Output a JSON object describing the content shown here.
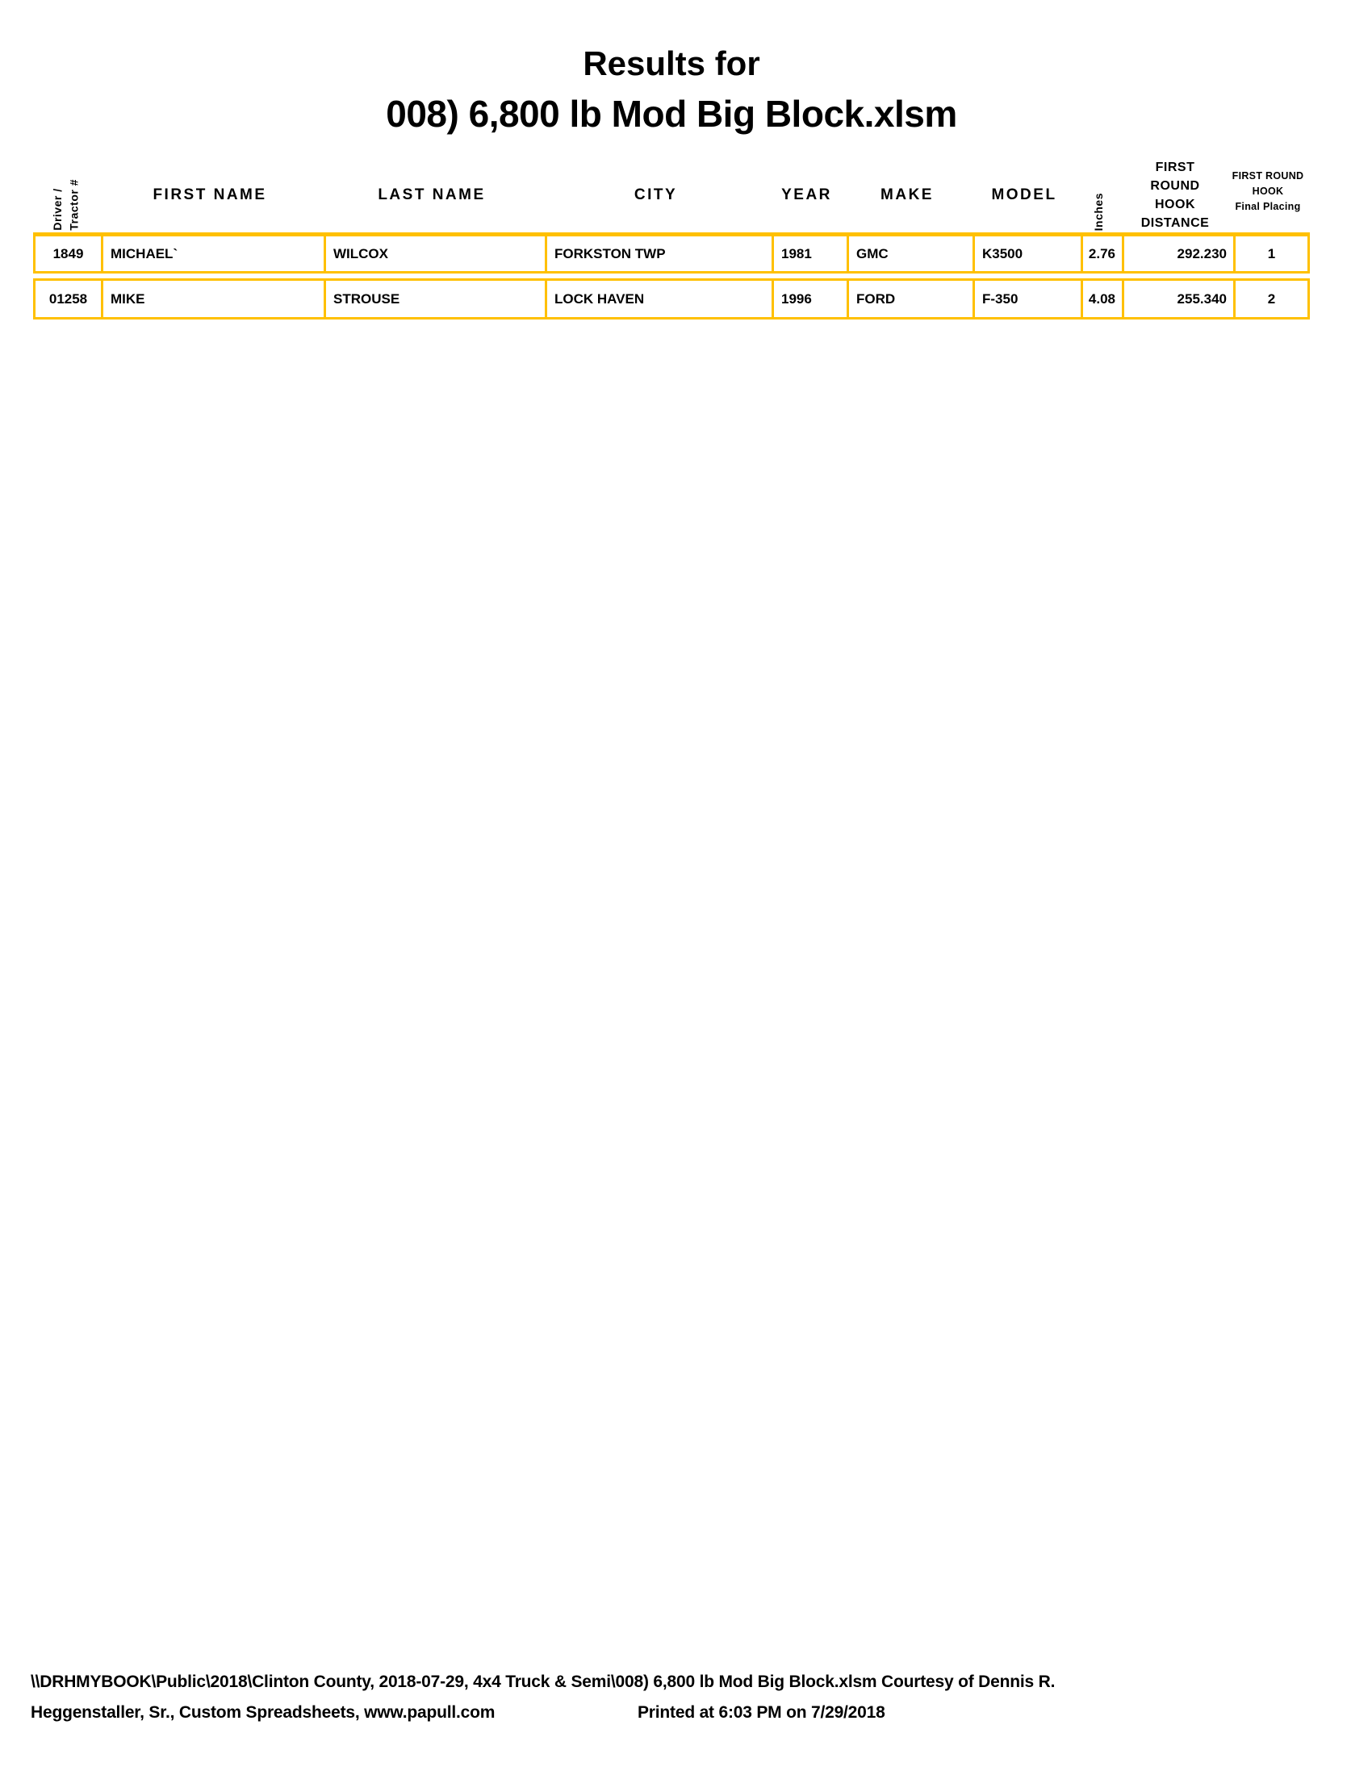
{
  "meta": {
    "title_line1": "Results for",
    "title_line2": "008) 6,800 lb Mod Big Block.xlsm"
  },
  "colors": {
    "table_border": "#FFC000",
    "text": "#000000",
    "background": "#FFFFFF"
  },
  "table": {
    "headers": {
      "driver": "Driver /\nTractor #",
      "first_name": "FIRST NAME",
      "last_name": "LAST NAME",
      "city": "CITY",
      "year": "YEAR",
      "make": "MAKE",
      "model": "MODEL",
      "inches": "Inches",
      "first_round_hook_distance": "FIRST\nROUND\nHOOK\nDISTANCE",
      "first_round_hook_final_placing": "FIRST ROUND\nHOOK\nFinal Placing"
    },
    "rows": [
      {
        "driver": "1849",
        "first_name": "MICHAEL`",
        "last_name": "WILCOX",
        "city": "FORKSTON TWP",
        "year": "1981",
        "make": "GMC",
        "model": "K3500",
        "inches": "2.76",
        "first_round_hook_distance": "292.230",
        "final_placing": "1"
      },
      {
        "driver": "01258",
        "first_name": "MIKE",
        "last_name": "STROUSE",
        "city": "LOCK HAVEN",
        "year": "1996",
        "make": "FORD",
        "model": "F-350",
        "inches": "4.08",
        "first_round_hook_distance": "255.340",
        "final_placing": "2"
      }
    ]
  },
  "footer": {
    "line1": "\\\\DRHMYBOOK\\Public\\2018\\Clinton County, 2018-07-29, 4x4 Truck & Semi\\008) 6,800 lb Mod Big Block.xlsm  Courtesy of Dennis R.",
    "line2_left": "Heggenstaller, Sr., Custom Spreadsheets, www.papull.com",
    "line2_right": "Printed at 6:03 PM on 7/29/2018"
  }
}
